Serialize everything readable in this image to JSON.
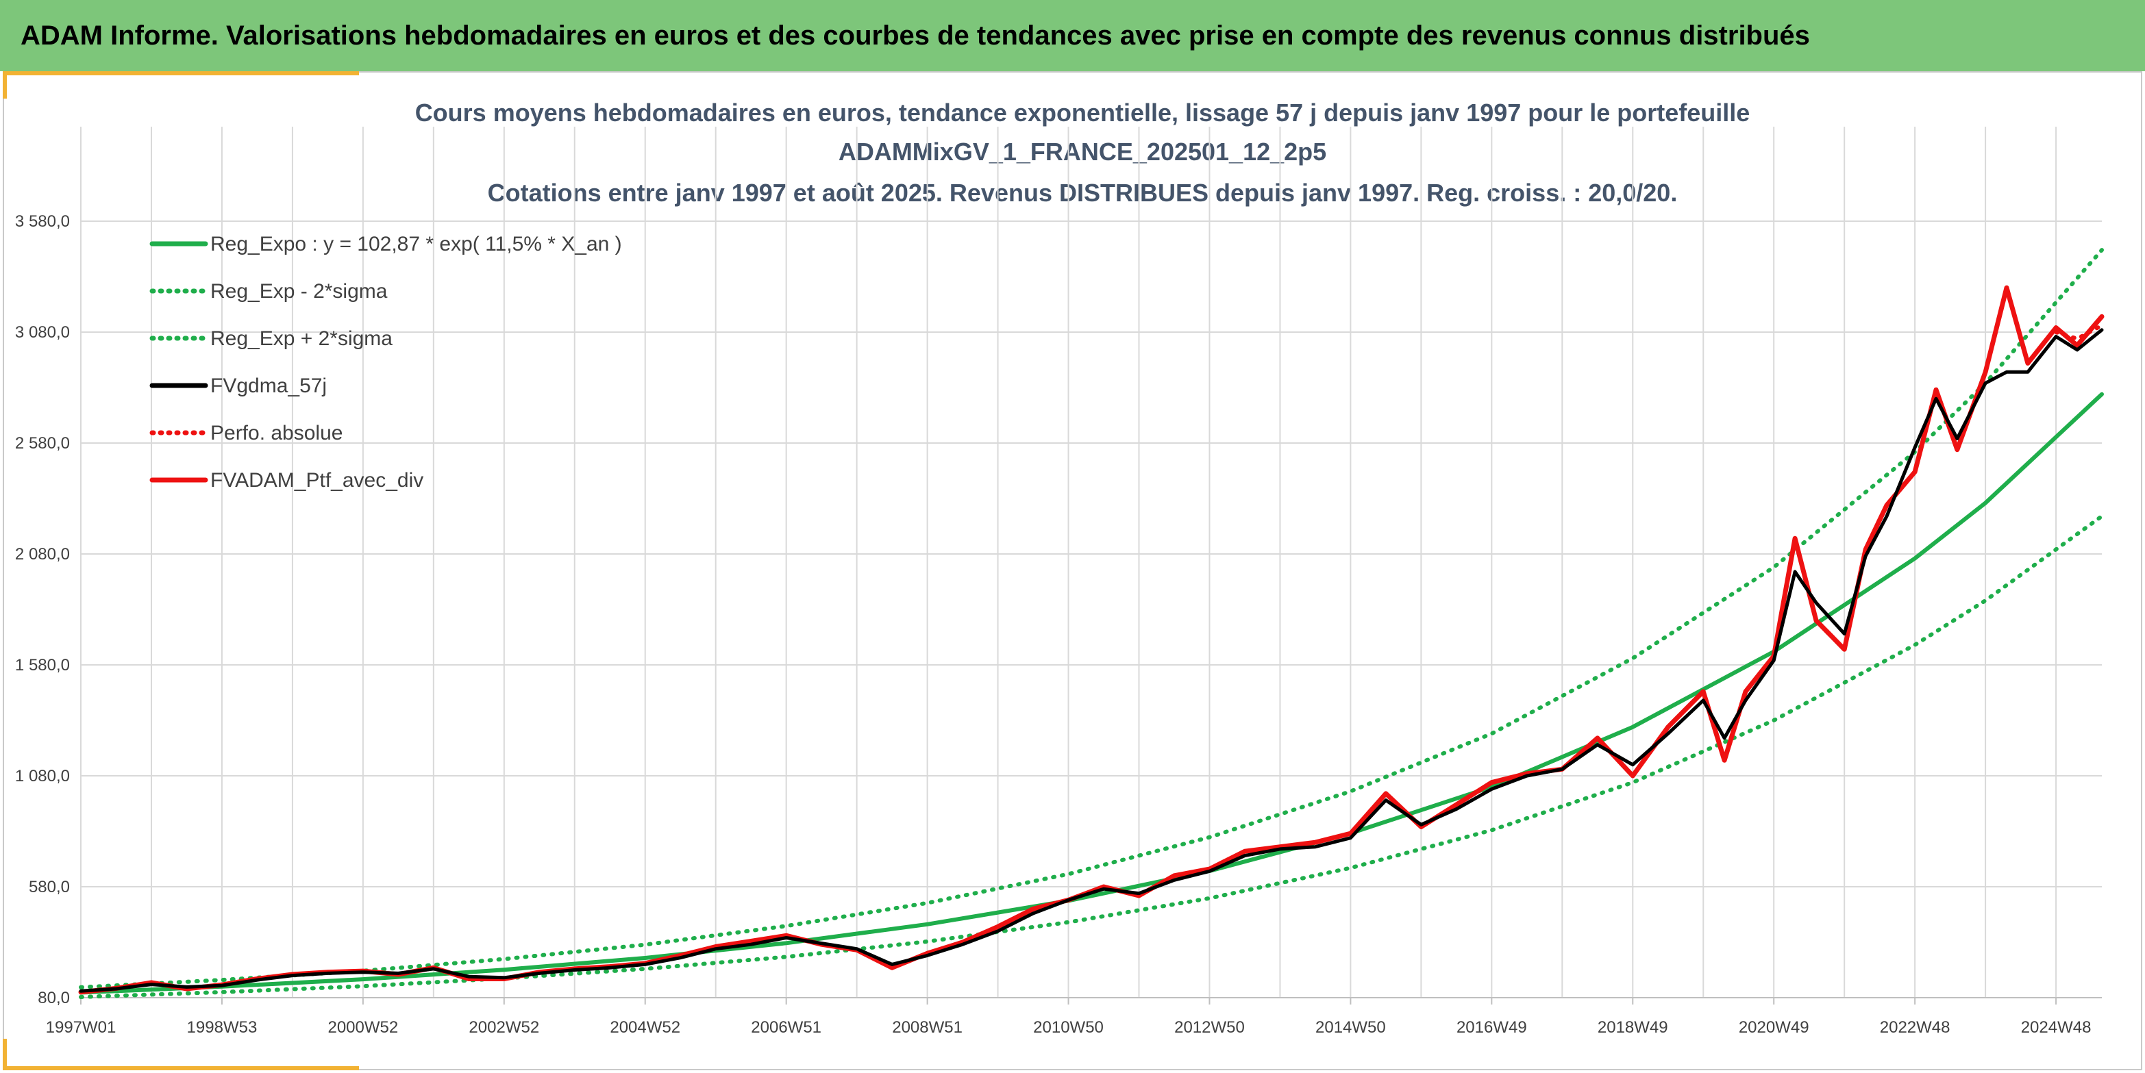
{
  "header": {
    "title": "ADAM Informe. Valorisations hebdomadaires en euros et des courbes de tendances avec prise en compte des revenus connus distribués"
  },
  "colors": {
    "banner": "#7dc67a",
    "accent_corner": "#f2b233",
    "regression": "#1fae4b",
    "smoothed": "#000000",
    "portfolio": "#ee1111",
    "title_text": "#44546a",
    "grid": "#d9d9d9"
  },
  "chart_data": {
    "type": "line",
    "title": [
      "Cours moyens hebdomadaires en euros, tendance exponentielle, lissage 57 j depuis janv 1997 pour le portefeuille",
      "ADAMMixGV_1_FRANCE_202501_12_2p5",
      "Cotations entre janv 1997 et août 2025. Revenus DISTRIBUES depuis janv 1997. Reg. croiss. : 20,0/20."
    ],
    "xlabel": "",
    "ylabel": "",
    "ylim": [
      80,
      3580
    ],
    "xlim": [
      1997.0,
      2025.65
    ],
    "grid": true,
    "legend_position": "top-left",
    "y_ticks": [
      "80,0",
      "580,0",
      "1 080,0",
      "1 580,0",
      "2 080,0",
      "2 580,0",
      "3 080,0",
      "3 580,0"
    ],
    "x_ticks": [
      {
        "label": "1997W01",
        "x": 1997.0
      },
      {
        "label": "1998W53",
        "x": 1999.0
      },
      {
        "label": "2000W52",
        "x": 2001.0
      },
      {
        "label": "2002W52",
        "x": 2003.0
      },
      {
        "label": "2004W52",
        "x": 2005.0
      },
      {
        "label": "2006W51",
        "x": 2007.0
      },
      {
        "label": "2008W51",
        "x": 2009.0
      },
      {
        "label": "2010W50",
        "x": 2011.0
      },
      {
        "label": "2012W50",
        "x": 2013.0
      },
      {
        "label": "2014W50",
        "x": 2015.0
      },
      {
        "label": "2016W49",
        "x": 2017.0
      },
      {
        "label": "2018W49",
        "x": 2019.0
      },
      {
        "label": "2020W49",
        "x": 2021.0
      },
      {
        "label": "2022W48",
        "x": 2023.0
      },
      {
        "label": "2024W48",
        "x": 2025.0
      }
    ],
    "series": [
      {
        "name": "Reg_Expo : y = 102,87 * exp( 11,5% *  X_an )",
        "style": "solid",
        "color": "#1fae4b",
        "x": [
          1997.0,
          1999.0,
          2001.0,
          2003.0,
          2005.0,
          2007.0,
          2009.0,
          2011.0,
          2013.0,
          2015.0,
          2017.0,
          2019.0,
          2021.0,
          2023.0,
          2024.0,
          2025.65
        ],
        "y": [
          103,
          130,
          163,
          206,
          259,
          326,
          411,
          517,
          651,
          821,
          1030,
          1300,
          1640,
          2060,
          2310,
          2800
        ]
      },
      {
        "name": "Reg_Exp - 2*sigma",
        "style": "dotted",
        "color": "#1fae4b",
        "x": [
          1997.0,
          1999.0,
          2001.0,
          2003.0,
          2005.0,
          2007.0,
          2009.0,
          2011.0,
          2013.0,
          2015.0,
          2017.0,
          2019.0,
          2021.0,
          2023.0,
          2024.0,
          2025.65
        ],
        "y": [
          83,
          105,
          132,
          167,
          210,
          264,
          333,
          420,
          528,
          665,
          835,
          1050,
          1330,
          1670,
          1870,
          2250
        ]
      },
      {
        "name": "Reg_Exp + 2*sigma",
        "style": "dotted",
        "color": "#1fae4b",
        "x": [
          1997.0,
          1999.0,
          2001.0,
          2003.0,
          2005.0,
          2007.0,
          2009.0,
          2011.0,
          2013.0,
          2015.0,
          2017.0,
          2019.0,
          2021.0,
          2023.0,
          2024.0,
          2025.65
        ],
        "y": [
          127,
          160,
          201,
          254,
          319,
          403,
          507,
          637,
          803,
          1010,
          1270,
          1610,
          2020,
          2540,
          2850,
          3450
        ]
      },
      {
        "name": "FVgdma_57j",
        "style": "solid",
        "color": "#000000",
        "x": [
          1997.0,
          1997.5,
          1998.0,
          1998.5,
          1999.0,
          1999.5,
          2000.0,
          2000.5,
          2001.0,
          2001.5,
          2002.0,
          2002.5,
          2003.0,
          2003.5,
          2004.0,
          2004.5,
          2005.0,
          2005.5,
          2006.0,
          2006.5,
          2007.0,
          2007.5,
          2008.0,
          2008.5,
          2009.0,
          2009.5,
          2010.0,
          2010.5,
          2011.0,
          2011.5,
          2012.0,
          2012.5,
          2013.0,
          2013.5,
          2014.0,
          2014.5,
          2015.0,
          2015.5,
          2016.0,
          2016.5,
          2017.0,
          2017.5,
          2018.0,
          2018.5,
          2019.0,
          2019.5,
          2020.0,
          2020.3,
          2020.6,
          2021.0,
          2021.3,
          2021.6,
          2022.0,
          2022.3,
          2022.6,
          2023.0,
          2023.3,
          2023.6,
          2024.0,
          2024.3,
          2024.6,
          2025.0,
          2025.3,
          2025.65
        ],
        "y": [
          110,
          120,
          140,
          128,
          135,
          160,
          180,
          190,
          195,
          190,
          210,
          175,
          170,
          190,
          205,
          215,
          230,
          260,
          300,
          320,
          350,
          325,
          300,
          230,
          270,
          320,
          380,
          460,
          520,
          570,
          550,
          610,
          650,
          720,
          750,
          760,
          800,
          970,
          860,
          930,
          1020,
          1080,
          1110,
          1220,
          1130,
          1270,
          1420,
          1250,
          1420,
          1600,
          2000,
          1860,
          1720,
          2070,
          2250,
          2560,
          2780,
          2600,
          2850,
          2900,
          2900,
          3060,
          3000,
          3090
        ]
      },
      {
        "name": "Perfo. absolue",
        "style": "dotted",
        "color": "#ee1111",
        "x": [
          2025.0,
          2025.3,
          2025.65
        ],
        "y": [
          3080,
          3050,
          3110
        ]
      },
      {
        "name": "FVADAM_Ptf_avec_div",
        "style": "solid",
        "color": "#ee1111",
        "x": [
          1997.0,
          1997.5,
          1998.0,
          1998.5,
          1999.0,
          1999.5,
          2000.0,
          2000.5,
          2001.0,
          2001.5,
          2002.0,
          2002.5,
          2003.0,
          2003.5,
          2004.0,
          2004.5,
          2005.0,
          2005.5,
          2006.0,
          2006.5,
          2007.0,
          2007.5,
          2008.0,
          2008.5,
          2009.0,
          2009.5,
          2010.0,
          2010.5,
          2011.0,
          2011.5,
          2012.0,
          2012.5,
          2013.0,
          2013.5,
          2014.0,
          2014.5,
          2015.0,
          2015.5,
          2016.0,
          2016.5,
          2017.0,
          2017.5,
          2018.0,
          2018.5,
          2019.0,
          2019.5,
          2020.0,
          2020.3,
          2020.6,
          2021.0,
          2021.3,
          2021.6,
          2022.0,
          2022.3,
          2022.6,
          2023.0,
          2023.3,
          2023.6,
          2024.0,
          2024.3,
          2024.6,
          2025.0,
          2025.3,
          2025.65
        ],
        "y": [
          105,
          122,
          148,
          120,
          138,
          165,
          185,
          195,
          200,
          185,
          215,
          165,
          165,
          195,
          210,
          220,
          235,
          270,
          310,
          335,
          360,
          320,
          295,
          215,
          280,
          330,
          400,
          480,
          520,
          580,
          540,
          630,
          660,
          740,
          760,
          780,
          820,
          1000,
          850,
          950,
          1050,
          1090,
          1110,
          1250,
          1080,
          1300,
          1460,
          1150,
          1460,
          1620,
          2150,
          1780,
          1650,
          2100,
          2300,
          2450,
          2820,
          2550,
          2900,
          3280,
          2940,
          3100,
          3020,
          3150
        ]
      }
    ]
  }
}
